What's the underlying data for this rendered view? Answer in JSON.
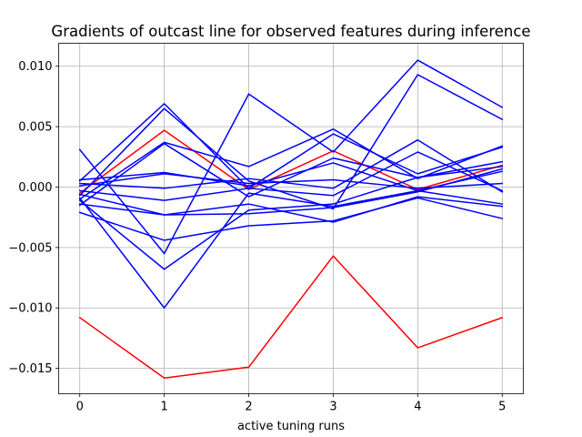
{
  "chart_data": {
    "type": "line",
    "title": "Gradients of outcast line for observed features during inference",
    "xlabel": "active tuning runs",
    "ylabel": "",
    "x": [
      0,
      1,
      2,
      3,
      4,
      5
    ],
    "xlim": [
      -0.25,
      5.25
    ],
    "ylim": [
      -0.0171,
      0.0119
    ],
    "xticks": [
      0,
      1,
      2,
      3,
      4,
      5
    ],
    "xtick_labels": [
      "0",
      "1",
      "2",
      "3",
      "4",
      "5"
    ],
    "yticks": [
      0.01,
      0.005,
      0.0,
      -0.005,
      -0.01,
      -0.015
    ],
    "ytick_labels": [
      "0.010",
      "0.005",
      "0.000",
      "−0.005",
      "−0.010",
      "−0.015"
    ],
    "grid": true,
    "colors": {
      "highlight": "#ff0000",
      "normal": "#0000ff"
    },
    "series": [
      {
        "color": "#ff0000",
        "values": [
          -0.0108,
          -0.0158,
          -0.0149,
          -0.0057,
          -0.0133,
          -0.0108
        ]
      },
      {
        "color": "#ff0000",
        "values": [
          -0.0005,
          0.0047,
          -0.0002,
          0.003,
          -0.0002,
          0.0018
        ]
      },
      {
        "color": "#0000ff",
        "values": [
          0.0031,
          -0.0055,
          0.0077,
          0.0029,
          0.0105,
          0.0066
        ]
      },
      {
        "color": "#0000ff",
        "values": [
          0.0005,
          0.0069,
          -0.0001,
          0.0044,
          0.0011,
          0.0033
        ]
      },
      {
        "color": "#0000ff",
        "values": [
          -0.0007,
          0.0065,
          0.0005,
          -0.0018,
          0.0093,
          0.0056
        ]
      },
      {
        "color": "#0000ff",
        "values": [
          -0.001,
          0.0037,
          0.0017,
          0.0048,
          0.0007,
          0.0034
        ]
      },
      {
        "color": "#0000ff",
        "values": [
          -0.0015,
          0.0036,
          -0.0008,
          0.0024,
          0.0008,
          0.0017
        ]
      },
      {
        "color": "#0000ff",
        "values": [
          0.0006,
          0.0012,
          0.0001,
          0.002,
          -0.0003,
          0.0013
        ]
      },
      {
        "color": "#0000ff",
        "values": [
          0.0003,
          -0.0001,
          0.0007,
          -0.0001,
          0.0039,
          -0.0004
        ]
      },
      {
        "color": "#0000ff",
        "values": [
          0.0001,
          0.0011,
          0.0003,
          0.0006,
          -0.0001,
          0.0003
        ]
      },
      {
        "color": "#0000ff",
        "values": [
          -0.0003,
          -0.0011,
          -0.0001,
          -0.0007,
          0.0029,
          -0.0003
        ]
      },
      {
        "color": "#0000ff",
        "values": [
          -0.0011,
          -0.0068,
          -0.0019,
          -0.0014,
          0.0008,
          0.0021
        ]
      },
      {
        "color": "#0000ff",
        "values": [
          -0.0009,
          -0.01,
          -0.0005,
          -0.0016,
          -0.0003,
          -0.0014
        ]
      },
      {
        "color": "#0000ff",
        "values": [
          -0.0014,
          -0.0023,
          -0.0014,
          -0.0029,
          -0.0008,
          -0.0016
        ]
      },
      {
        "color": "#0000ff",
        "values": [
          -0.0021,
          -0.0044,
          -0.0032,
          -0.0028,
          -0.0009,
          -0.0026
        ]
      },
      {
        "color": "#0000ff",
        "values": [
          -0.0006,
          -0.0023,
          -0.0022,
          -0.0017,
          -0.0004,
          0.0015
        ]
      }
    ]
  }
}
